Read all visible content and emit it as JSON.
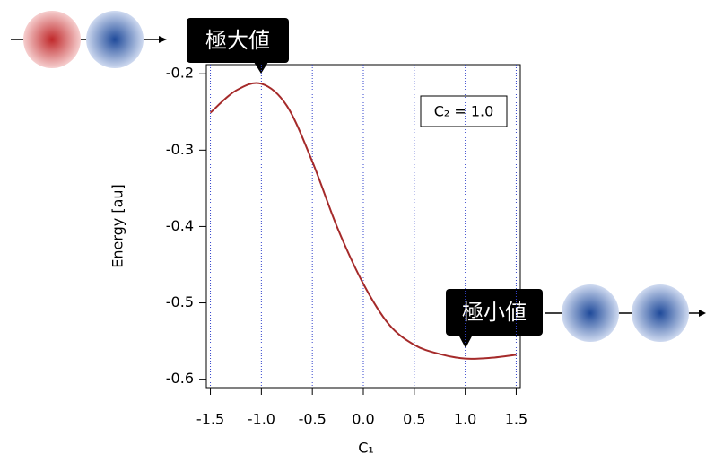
{
  "chart_data": {
    "type": "line",
    "x": [
      -1.5,
      -1.25,
      -1.0,
      -0.75,
      -0.5,
      -0.25,
      0.0,
      0.25,
      0.5,
      0.75,
      1.0,
      1.25,
      1.5
    ],
    "values": [
      -0.251,
      -0.222,
      -0.213,
      -0.242,
      -0.315,
      -0.403,
      -0.475,
      -0.528,
      -0.555,
      -0.567,
      -0.573,
      -0.572,
      -0.568
    ],
    "color": "#a52a2a",
    "xlabel": "C₁",
    "ylabel": "Energy [au]",
    "xlim": [
      -1.54,
      1.54
    ],
    "ylim": [
      -0.611,
      -0.188
    ],
    "xticks": [
      -1.5,
      {
        "value": -1.0,
        "label": "-1.0"
      },
      -0.5,
      {
        "value": 0.0,
        "label": "0.0"
      },
      0.5,
      {
        "value": 1.0,
        "label": "1.0"
      },
      1.5
    ],
    "yticks": [
      -0.2,
      -0.3,
      -0.4,
      -0.5,
      -0.6
    ],
    "grid": true,
    "grid_color": "#3344cc",
    "annotations": [
      "極大値",
      "極小値",
      "C₂ = 1.0"
    ]
  }
}
